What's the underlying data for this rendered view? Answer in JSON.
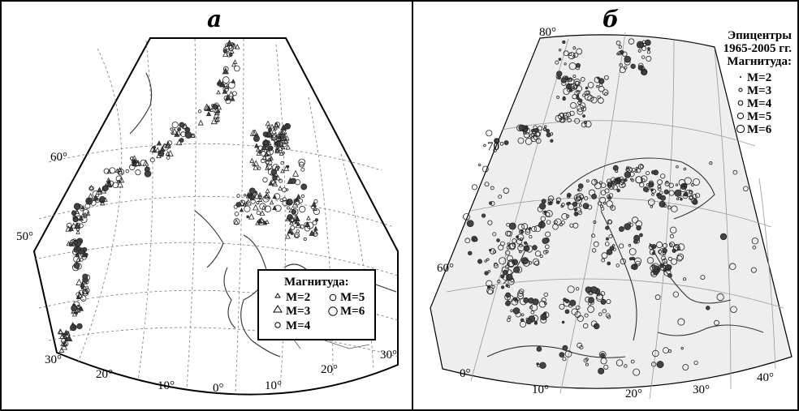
{
  "panels": [
    {
      "label": "а",
      "coords": [
        "60°",
        "50°",
        "30°",
        "20°",
        "10°",
        "0°",
        "10°",
        "20°",
        "30°"
      ],
      "legend": {
        "title": "Магнитуда:",
        "items": [
          "M=2",
          "M=3",
          "M=4",
          "M=5",
          "M=6"
        ]
      }
    },
    {
      "label": "б",
      "coords": [
        "80°",
        "70°",
        "60°",
        "0°",
        "10°",
        "20°",
        "30°",
        "40°"
      ],
      "legend": {
        "title_lines": [
          "Эпицентры",
          "1965-2005 гг.",
          "Магнитуда:"
        ],
        "items": [
          "M=2",
          "M=3",
          "M=4",
          "M=5",
          "M=6"
        ]
      }
    }
  ],
  "colors": {
    "frame": "#000000",
    "land": "#ffffff",
    "shade": "#e6e6e6",
    "dots": "#2b2b2b"
  }
}
